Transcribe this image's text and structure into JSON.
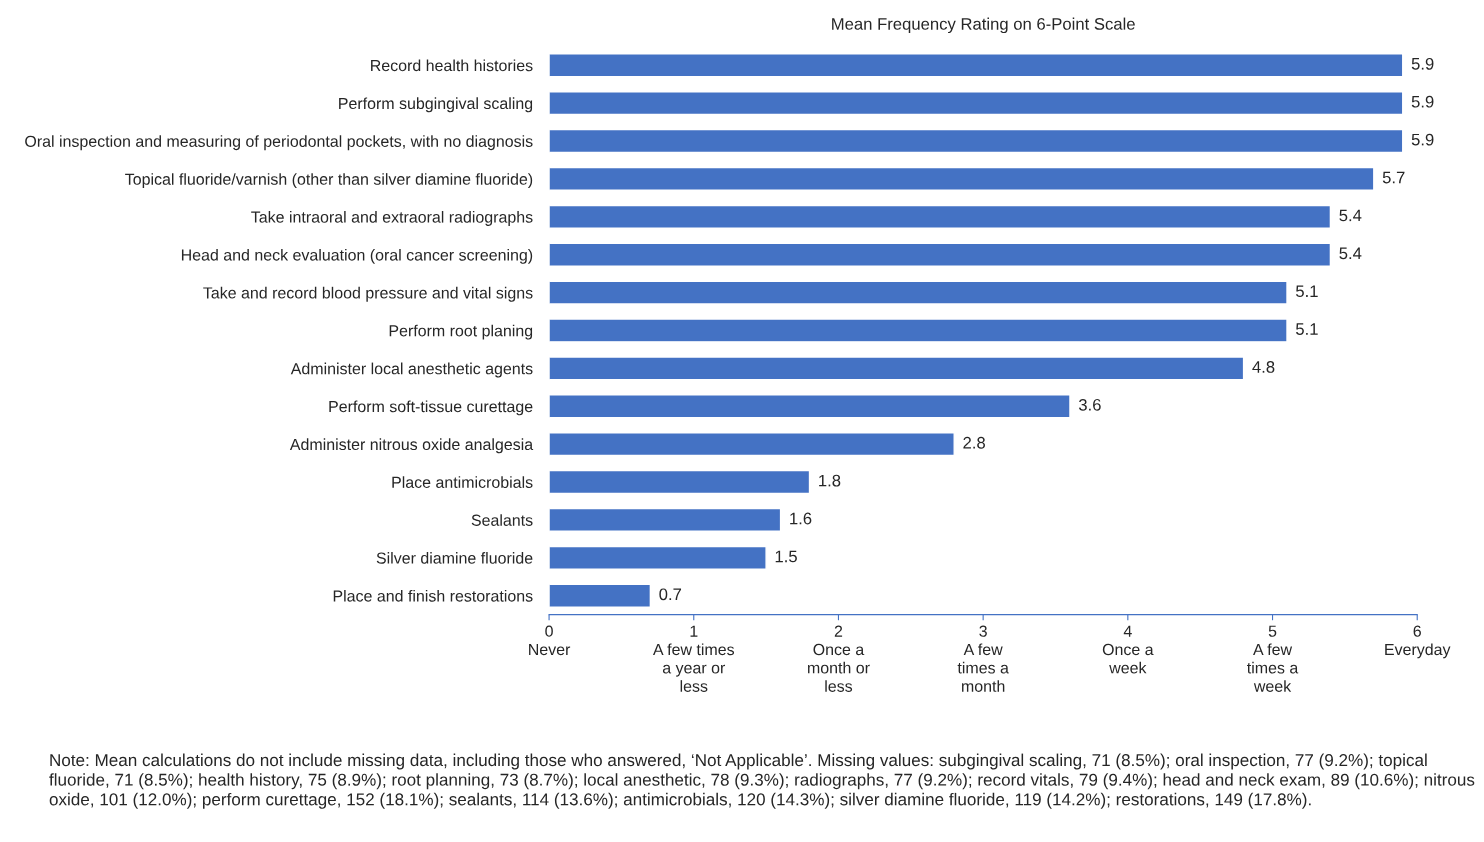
{
  "chart_data": {
    "type": "bar",
    "orientation": "horizontal",
    "title": "Mean Frequency Rating on 6-Point Scale",
    "categories": [
      "Record health histories",
      "Perform subgingival scaling",
      "Oral inspection and measuring of periodontal pockets, with no diagnosis",
      "Topical fluoride/varnish (other than silver diamine fluoride)",
      "Take intraoral and extraoral radiographs",
      "Head and neck evaluation (oral cancer screening)",
      "Take and record blood pressure and vital signs",
      "Perform root planing",
      "Administer local anesthetic agents",
      "Perform soft-tissue curettage",
      "Administer nitrous oxide analgesia",
      "Place antimicrobials",
      "Sealants",
      "Silver diamine fluoride",
      "Place and finish restorations"
    ],
    "values": [
      5.9,
      5.9,
      5.9,
      5.7,
      5.4,
      5.4,
      5.1,
      5.1,
      4.8,
      3.6,
      2.8,
      1.8,
      1.6,
      1.5,
      0.7
    ],
    "color": "#4472c4",
    "data_labels": true,
    "xlim": [
      0,
      6
    ],
    "xticks": [
      {
        "value": 0,
        "label": "0\nNever"
      },
      {
        "value": 1,
        "label": "1\nA few times\na year or\nless"
      },
      {
        "value": 2,
        "label": "2\nOnce a\nmonth or\nless"
      },
      {
        "value": 3,
        "label": "3\nA few\ntimes a\nmonth"
      },
      {
        "value": 4,
        "label": "4\nOnce a\nweek"
      },
      {
        "value": 5,
        "label": "5\nA few\ntimes a\nweek"
      },
      {
        "value": 6,
        "label": "6\nEveryday"
      }
    ],
    "grid": false,
    "legend": false,
    "annotations": [
      "Note: Mean calculations do not include missing data, including those who answered, ‘Not Applicable’. Missing values: subgingival scaling, 71 (8.5%); oral inspection, 77 (9.2%); topical fluoride, 71 (8.5%); health history, 75 (8.9%); root planning, 73 (8.7%); local anesthetic, 78 (9.3%); radiographs, 77 (9.2%); record vitals, 79 (9.4%); head and neck exam, 89 (10.6%); nitrous oxide, 101 (12.0%); perform curettage, 152 (18.1%); sealants, 114 (13.6%); antimicrobials, 120 (14.3%); silver diamine fluoride, 119 (14.2%); restorations, 149 (17.8%)."
    ]
  }
}
